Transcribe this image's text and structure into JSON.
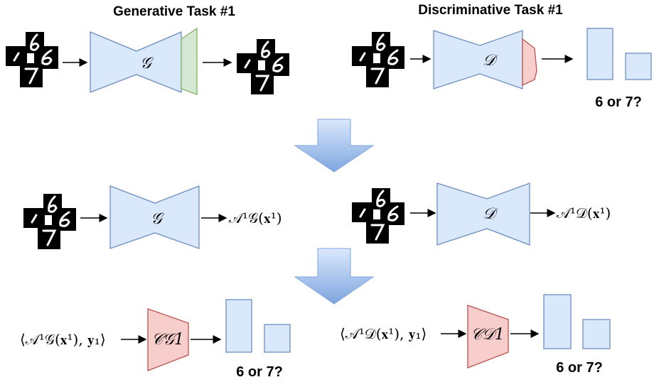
{
  "generative_task": {
    "title": "Generative Task  #1",
    "encoder": "𝒢"
  },
  "discriminative_task": {
    "title": "Discriminative Task #1",
    "encoder": "𝒟",
    "question": "6 or 7?"
  },
  "activations": {
    "generative": {
      "encoder": "𝒢",
      "output": "𝒜¹𝒢(𝐱¹)"
    },
    "discriminative": {
      "encoder": "𝒟",
      "output": "𝒜¹𝒟(𝐱¹)"
    }
  },
  "classifiers": {
    "generative": {
      "input": "⟨𝒜¹𝒢(𝐱¹), 𝐲₁⟩",
      "label": "𝒞𝒢1",
      "question": "6 or 7?"
    },
    "discriminative": {
      "input": "⟨𝒜¹𝒟(𝐱¹), 𝐲₁⟩",
      "label": "𝒞𝒟1",
      "question": "6 or 7?"
    }
  }
}
